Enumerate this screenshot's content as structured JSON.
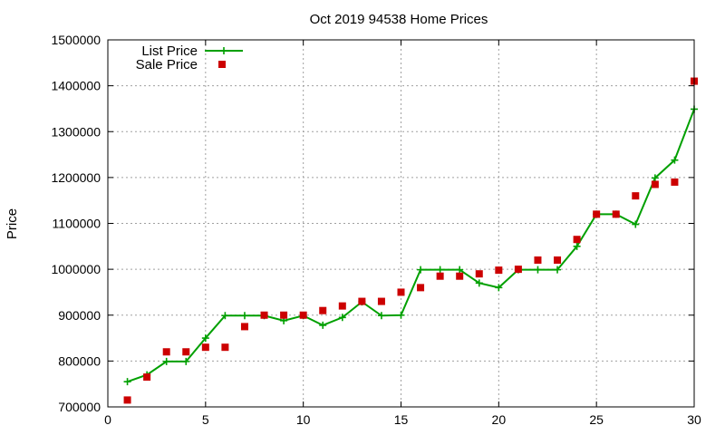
{
  "chart_data": {
    "type": "line",
    "title": "Oct 2019 94538 Home Prices",
    "xlabel": "",
    "ylabel": "Price",
    "xlim": [
      0,
      30
    ],
    "ylim": [
      700000,
      1500000
    ],
    "x_ticks": [
      0,
      5,
      10,
      15,
      20,
      25,
      30
    ],
    "y_ticks": [
      700000,
      800000,
      900000,
      1000000,
      1100000,
      1200000,
      1300000,
      1400000,
      1500000
    ],
    "grid": true,
    "legend_position": "top-left",
    "series": [
      {
        "name": "List Price",
        "style": "line-plus",
        "color": "#00a000",
        "x": [
          1,
          2,
          3,
          4,
          5,
          6,
          7,
          8,
          9,
          10,
          11,
          12,
          13,
          14,
          15,
          16,
          17,
          18,
          19,
          20,
          21,
          22,
          23,
          24,
          25,
          26,
          27,
          28,
          29,
          30
        ],
        "values": [
          755000,
          770000,
          799000,
          799000,
          850000,
          899000,
          899000,
          899000,
          888000,
          899000,
          878000,
          895000,
          929000,
          899000,
          900000,
          999000,
          999000,
          999000,
          970000,
          960000,
          999000,
          999000,
          999000,
          1050000,
          1120000,
          1120000,
          1098000,
          1199000,
          1238000,
          1349000
        ]
      },
      {
        "name": "Sale Price",
        "style": "square-markers",
        "color": "#cc0000",
        "x": [
          1,
          2,
          3,
          4,
          5,
          6,
          7,
          8,
          9,
          10,
          11,
          12,
          13,
          14,
          15,
          16,
          17,
          18,
          19,
          20,
          21,
          22,
          23,
          24,
          25,
          26,
          27,
          28,
          29,
          30
        ],
        "values": [
          715000,
          765000,
          820000,
          820000,
          830000,
          830000,
          875000,
          900000,
          900000,
          900000,
          910000,
          920000,
          930000,
          930000,
          950000,
          960000,
          985000,
          985000,
          990000,
          998000,
          1000000,
          1020000,
          1020000,
          1065000,
          1120000,
          1120000,
          1160000,
          1185000,
          1190000,
          1410000
        ]
      }
    ]
  }
}
